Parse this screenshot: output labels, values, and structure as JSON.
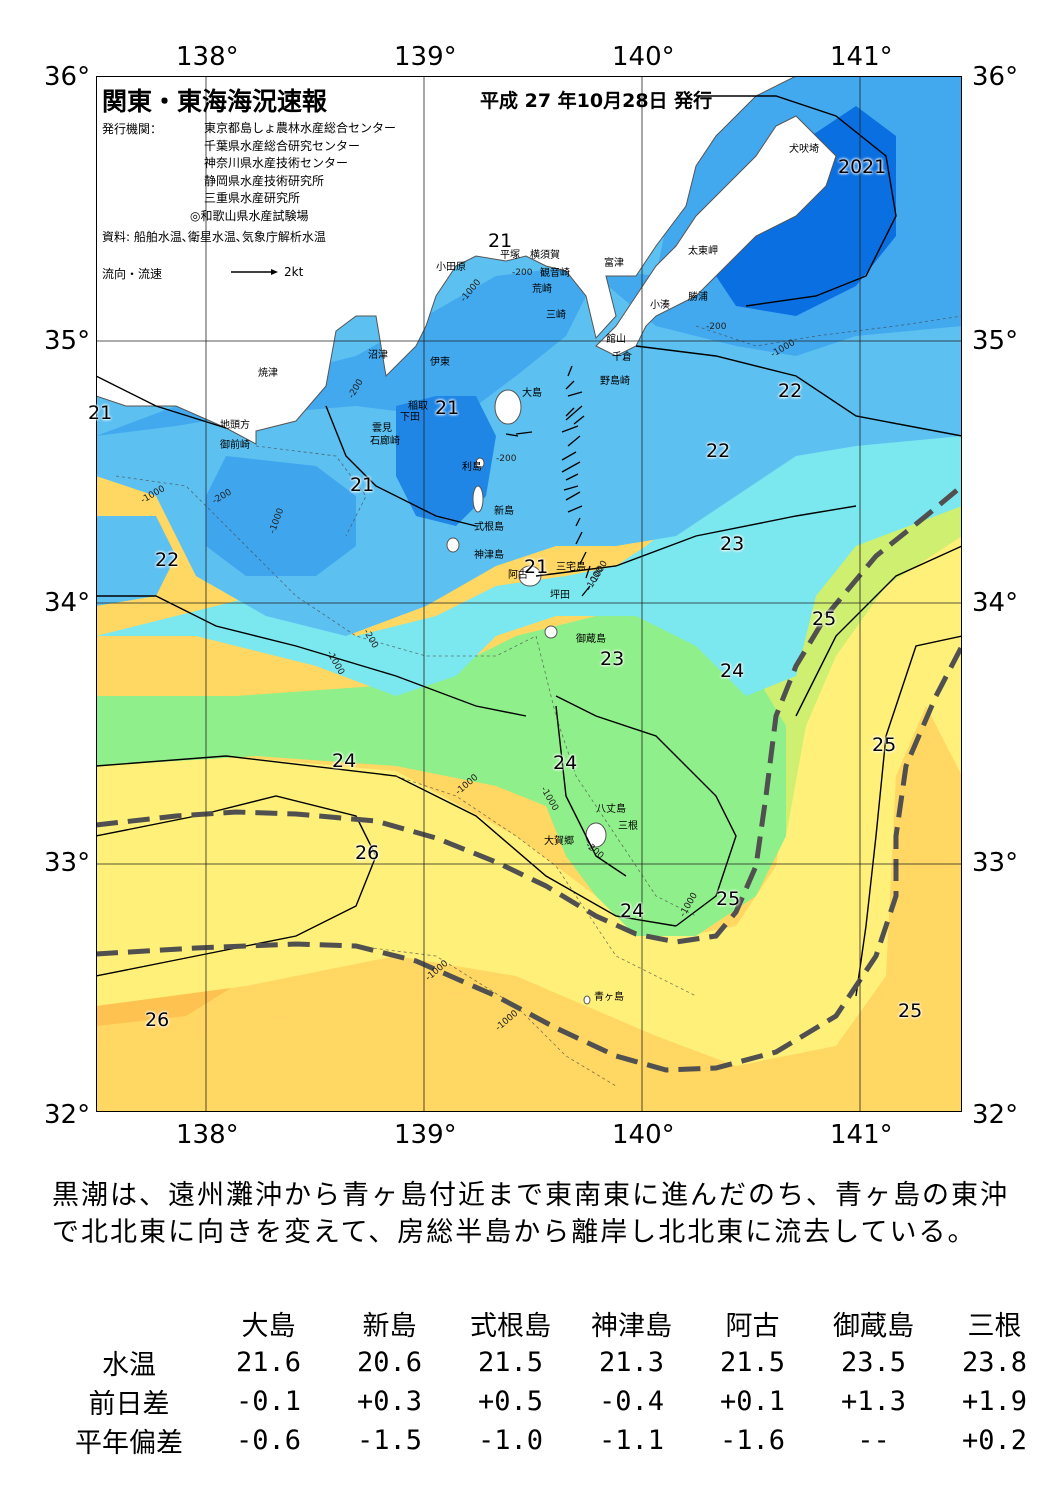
{
  "header": {
    "title": "関東・東海海況速報",
    "date": "平成 27 年10月28日 発行",
    "issuer_label": "発行機関：",
    "issuers": [
      "東京都島しょ農林水産総合センター",
      "千葉県水産総合研究センター",
      "神奈川県水産技術センター",
      "静岡県水産技術研究所",
      "三重県水産研究所",
      "◎和歌山県水産試験場"
    ],
    "source": "資料: 船舶水温､衛星水温､気象庁解析水温",
    "current_legend": "流向・流速",
    "current_scale": "2kt"
  },
  "map": {
    "lon_labels": [
      "138°",
      "139°",
      "140°",
      "141°"
    ],
    "lat_labels": [
      "36°",
      "35°",
      "34°",
      "33°",
      "32°"
    ],
    "place_names": [
      "犬吠埼",
      "太東岬",
      "勝浦",
      "小湊",
      "富津",
      "横須賀",
      "観音崎",
      "平塚",
      "小田原",
      "荒崎",
      "三崎",
      "館山",
      "千倉",
      "野島崎",
      "沼津",
      "焼津",
      "伊東",
      "稲取",
      "下田",
      "雲見",
      "石廊崎",
      "地頭方",
      "御前崎",
      "大島",
      "利島",
      "新島",
      "式根島",
      "神津島",
      "三宅島",
      "阿古",
      "坪田",
      "御蔵島",
      "八丈島",
      "三根",
      "大賀郷",
      "青ヶ島"
    ],
    "isotherm_labels": [
      "20",
      "21",
      "21",
      "21",
      "21",
      "21",
      "21",
      "22",
      "22",
      "22",
      "23",
      "23",
      "23",
      "24",
      "24",
      "24",
      "24",
      "25",
      "25",
      "25",
      "25",
      "26",
      "26"
    ],
    "depth_labels": [
      "-200",
      "-1000",
      "-200",
      "-1000",
      "-200",
      "-1000",
      "-200",
      "-1000",
      "-200",
      "-1000",
      "-1000",
      "-200",
      "-1000",
      "-1000",
      "-1000",
      "-1000",
      "-200",
      "-200",
      "-1000",
      "-1000"
    ],
    "colors": {
      "t20": "#0a6fe0",
      "t21": "#2f98ec",
      "t22": "#5cc0f0",
      "t23": "#7be7ee",
      "t24": "#8fef8a",
      "t245": "#cfef70",
      "t25": "#fff07a",
      "t255": "#ffd763",
      "t26": "#ffb84a",
      "t265": "#f9a334",
      "kuroshio": "#505050"
    }
  },
  "summary": "黒潮は、遠州灘沖から青ヶ島付近まで東南東に進んだのち、青ヶ島の東沖で北北東に向きを変えて、房総半島から離岸し北北東に流去している。",
  "table": {
    "stations": [
      "大島",
      "新島",
      "式根島",
      "神津島",
      "阿古",
      "御蔵島",
      "三根"
    ],
    "rows": [
      {
        "label": "水温",
        "values": [
          "21.6",
          "20.6",
          "21.5",
          "21.3",
          "21.5",
          "23.5",
          "23.8"
        ]
      },
      {
        "label": "前日差",
        "values": [
          "-0.1",
          "+0.3",
          "+0.5",
          "-0.4",
          "+0.1",
          "+1.3",
          "+1.9"
        ]
      },
      {
        "label": "平年偏差",
        "values": [
          "-0.6",
          "-1.5",
          "-1.0",
          "-1.1",
          "-1.6",
          "--",
          "+0.2"
        ]
      }
    ]
  }
}
